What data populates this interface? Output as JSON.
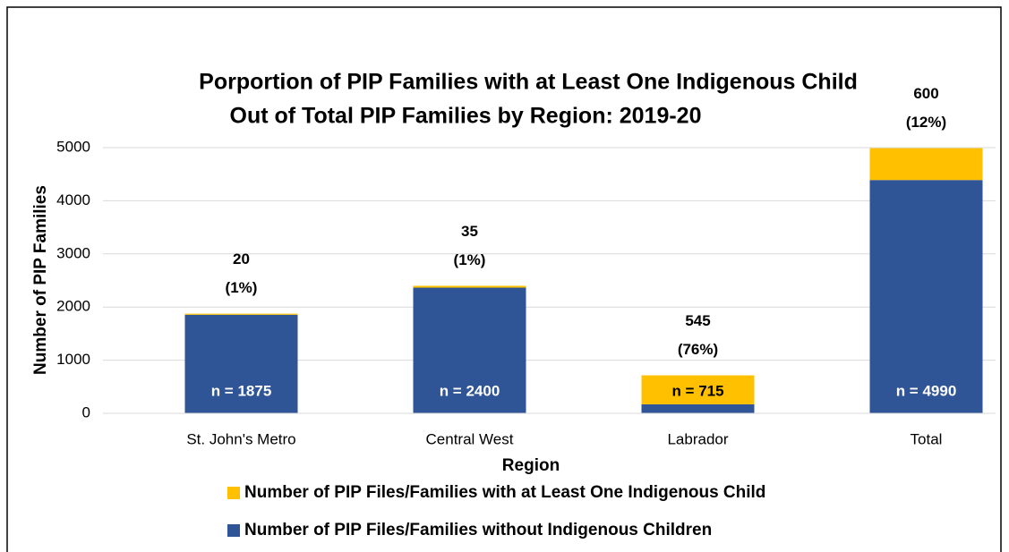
{
  "chart_data": {
    "type": "bar",
    "stacked": true,
    "title": [
      "Porportion of PIP Families with at Least One Indigenous Child",
      "Out of Total PIP Families by Region: 2019-20"
    ],
    "x_label": "Region",
    "y_label": "Number of PIP Families",
    "categories": [
      "St. John's Metro",
      "Central West",
      "Labrador",
      "Total"
    ],
    "series": [
      {
        "name": "Number of PIP Files/Families without Indigenous Children",
        "color": "#2f5597",
        "values": [
          1855,
          2365,
          170,
          4390
        ]
      },
      {
        "name": "Number of PIP Files/Families with at Least One Indigenous Child",
        "color": "#ffc000",
        "values": [
          20,
          35,
          545,
          600
        ],
        "percent_labels": [
          "(1%)",
          "(1%)",
          "(76%)",
          "(12%)"
        ]
      }
    ],
    "total_labels": [
      "n = 1875",
      "n = 2400",
      "n = 715",
      "n = 4990"
    ],
    "ylim": [
      0,
      5000
    ],
    "yticks": [
      0,
      1000,
      2000,
      3000,
      4000,
      5000
    ],
    "grid": true
  }
}
